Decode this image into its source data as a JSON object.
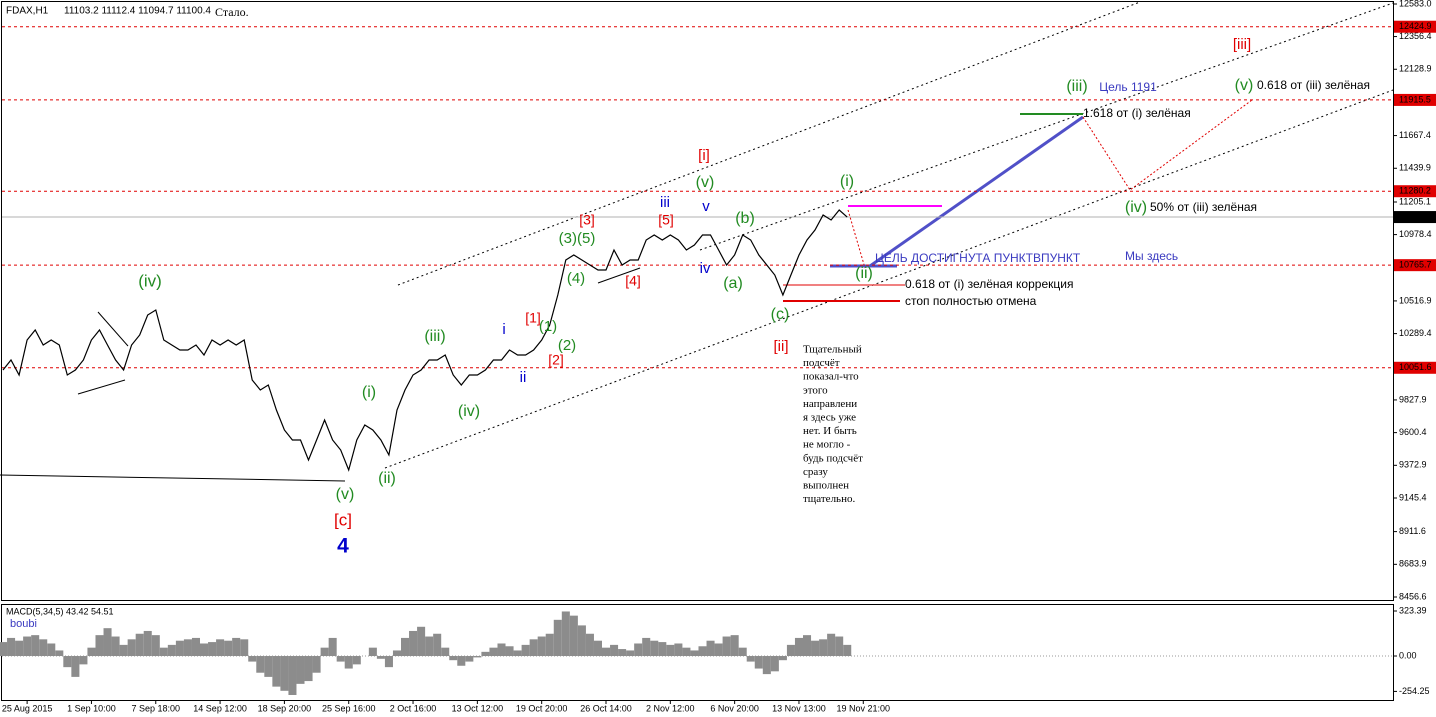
{
  "chart_data": [
    {
      "type": "line",
      "title": "FDAX,H1",
      "subtitle": "11103.2 11112.4 11094.7 11100.4",
      "note": "Стало.",
      "color": "#000000",
      "categories": [
        null,
        null,
        null,
        "25 Aug 2015",
        null,
        null,
        null,
        null,
        null,
        null,
        null,
        "1 Sep 10:00",
        null,
        null,
        null,
        null,
        null,
        null,
        null,
        "7 Sep 18:00",
        null,
        null,
        null,
        null,
        null,
        null,
        null,
        "14 Sep 12:00",
        null,
        null,
        null,
        null,
        null,
        null,
        null,
        "18 Sep 20:00",
        null,
        null,
        null,
        null,
        null,
        null,
        null,
        "25 Sep 16:00",
        null,
        null,
        null,
        null,
        null,
        null,
        null,
        "2 Oct 16:00",
        null,
        null,
        null,
        null,
        null,
        null,
        null,
        "13 Oct 12:00",
        null,
        null,
        null,
        null,
        null,
        null,
        null,
        "19 Oct 20:00",
        null,
        null,
        null,
        null,
        null,
        null,
        null,
        "26 Oct 14:00",
        null,
        null,
        null,
        null,
        null,
        null,
        null,
        "2 Nov 12:00",
        null,
        null,
        null,
        null,
        null,
        null,
        null,
        "6 Nov 20:00",
        null,
        null,
        null,
        null,
        null,
        null,
        null,
        "13 Nov 13:00",
        null,
        null,
        null,
        null,
        null,
        null,
        null,
        "19 Nov 21:00"
      ],
      "values": [
        10036.3,
        10105.9,
        10001.6,
        10245.1,
        10314.7,
        10210.3,
        10245.1,
        10210.3,
        10001.6,
        10036.3,
        10105.9,
        10245.1,
        10314.7,
        10210.3,
        10105.9,
        10036.3,
        10210.3,
        10279.9,
        10419,
        10453.8,
        10245.1,
        10210.3,
        10175.5,
        10175.5,
        10210.3,
        10140.7,
        10245.1,
        10210.3,
        10245.1,
        10210.3,
        10245.1,
        9966.8,
        9897.2,
        9932,
        9758,
        9618.9,
        9549.3,
        9549.3,
        9410.1,
        9549.3,
        9688.4,
        9549.3,
        9479.7,
        9340.5,
        9549.3,
        9653.7,
        9618.9,
        9549.3,
        9444.9,
        9758,
        9897.2,
        10001.6,
        10036.3,
        10105.9,
        10105.9,
        10140.7,
        10001.6,
        9932,
        10001.6,
        10001.6,
        10036.3,
        10105.9,
        10105.9,
        10175.5,
        10140.7,
        10140.7,
        10175.5,
        10245.1,
        10349.4,
        10558.2,
        10801.7,
        10836.5,
        10801.7,
        10766.9,
        10732.1,
        10732.1,
        10871.3,
        10766.9,
        10801.7,
        10801.7,
        10940.9,
        10975.6,
        10940.9,
        10975.6,
        10940.9,
        10871.3,
        10906,
        10975.6,
        10975.6,
        10871.3,
        10766.9,
        10836.5,
        10975.6,
        10940.9,
        10836.5,
        10766.9,
        10697.3,
        10558.2,
        10697.3,
        10836.5,
        10940.9,
        11010.5,
        11114.8,
        11080,
        11149.6,
        11100.4,
        null,
        null
      ],
      "ylim": [
        8435.7,
        12610.8
      ],
      "yticks": [
        {
          "value": 12583,
          "label": "12583.0"
        },
        12356.4,
        12128.9,
        11667.4,
        11439.9,
        11205.1,
        10978.4,
        10516.9,
        10289.4,
        9827.9,
        9600.4,
        9372.9,
        9145.4,
        8911.6,
        8683.9,
        8456.6
      ],
      "levels": [
        12424.9,
        11915.5,
        11280.2,
        10765.7,
        10051.6
      ],
      "level_color": "#e00000",
      "current_price": 11100.4,
      "annotations": [
        {
          "text": "(iv)",
          "color": "#228b22"
        },
        {
          "text": "(v)",
          "color": "#228b22"
        },
        {
          "text": "[c]",
          "color": "#e00000"
        },
        {
          "text": "4",
          "color": "#0000cc"
        },
        {
          "text": "(i)",
          "color": "#228b22"
        },
        {
          "text": "(ii)",
          "color": "#228b22"
        },
        {
          "text": "(iii)",
          "color": "#228b22"
        },
        {
          "text": "(iv)",
          "color": "#228b22"
        },
        {
          "text": "i",
          "color": "#0000cc"
        },
        {
          "text": "ii",
          "color": "#0000cc"
        },
        {
          "text": "[1]",
          "color": "#e00000"
        },
        {
          "text": "(1)",
          "color": "#228b22"
        },
        {
          "text": "(2)",
          "color": "#228b22"
        },
        {
          "text": "[2]",
          "color": "#e00000"
        },
        {
          "text": "(3)(5)",
          "color": "#228b22"
        },
        {
          "text": "[3]",
          "color": "#e00000"
        },
        {
          "text": "(4)",
          "color": "#228b22"
        },
        {
          "text": "[4]",
          "color": "#e00000"
        },
        {
          "text": "[5]",
          "color": "#e00000"
        },
        {
          "text": "iii",
          "color": "#0000cc"
        },
        {
          "text": "[i]",
          "color": "#e00000"
        },
        {
          "text": "(v)",
          "color": "#228b22"
        },
        {
          "text": "v",
          "color": "#0000cc"
        },
        {
          "text": "iv",
          "color": "#0000cc"
        },
        {
          "text": "(a)",
          "color": "#228b22"
        },
        {
          "text": "(b)",
          "color": "#228b22"
        },
        {
          "text": "(c)",
          "color": "#228b22"
        },
        {
          "text": "[ii]",
          "color": "#e00000"
        },
        {
          "text": "(i)",
          "color": "#228b22"
        },
        {
          "text": "(ii)",
          "color": "#228b22"
        },
        {
          "text": "(iii)",
          "color": "#228b22"
        },
        {
          "text": "Цель  1191",
          "color": "#3a3ac0"
        },
        {
          "text": "(v)",
          "color": "#228b22"
        },
        {
          "text": "0.618 от (iii) зелёная",
          "color": "#000000"
        },
        {
          "text": "1.618 от (i) зелёная",
          "color": "#000000"
        },
        {
          "text": "[iii]",
          "color": "#e00000"
        },
        {
          "text": "(iv)",
          "color": "#228b22"
        },
        {
          "text": "50% от (iii) зелёная",
          "color": "#000000"
        },
        {
          "text": "ЦЕЛЬ ДОСТИГНУТА ПУНКТВПУНКТ",
          "color": "#3a3ac0"
        },
        {
          "text": "Мы здесь",
          "color": "#3a3ac0"
        },
        {
          "text": "0.618 от (i) зелёная коррекция",
          "color": "#000000"
        },
        {
          "text": "стоп полностью отмена",
          "color": "#000000"
        }
      ],
      "comment": [
        "Тщательный",
        "подсчёт",
        "показал-что",
        "этого",
        "направлени",
        "я здесь уже",
        "нет. И быть",
        "не могло -",
        "будь подсчёт",
        "сразу",
        "выполнен",
        "тщательно."
      ]
    },
    {
      "type": "bar",
      "title": "MACD(5,34,5) 43.42 54.51",
      "label": "boubi",
      "color": "#8c8c8c",
      "values": [
        100,
        130,
        110,
        140,
        150,
        120,
        90,
        40,
        -80,
        -150,
        -60,
        60,
        150,
        200,
        140,
        80,
        120,
        160,
        180,
        150,
        60,
        80,
        110,
        120,
        130,
        90,
        100,
        120,
        110,
        130,
        120,
        -40,
        -120,
        -150,
        -220,
        -250,
        -280,
        -200,
        -180,
        -120,
        60,
        130,
        -40,
        -90,
        -60,
        0,
        60,
        -20,
        -80,
        40,
        130,
        180,
        210,
        140,
        160,
        60,
        -30,
        -70,
        -40,
        -10,
        30,
        60,
        90,
        70,
        40,
        80,
        120,
        140,
        160,
        260,
        320,
        290,
        220,
        160,
        110,
        60,
        80,
        50,
        40,
        90,
        130,
        110,
        100,
        80,
        90,
        60,
        40,
        70,
        110,
        90,
        140,
        150,
        60,
        -40,
        -90,
        -130,
        -110,
        -30,
        80,
        130,
        150,
        110,
        120,
        160,
        140,
        80,
        null,
        null
      ],
      "ylim": [
        -316,
        373.7
      ],
      "yticks": [
        323.39,
        {
          "value": 0,
          "label": "0.00"
        },
        -254.25
      ]
    }
  ]
}
